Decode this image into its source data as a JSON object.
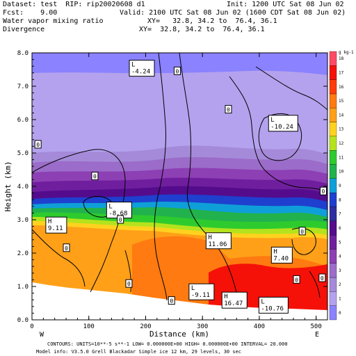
{
  "header": {
    "line1_left": "Dataset: test  RIP: rip20020608 d1",
    "line1_right": "Init: 1200 UTC Sat 08 Jun 02",
    "line2_left": "Fcst:    9.00",
    "line2_right": "Valid: 2100 UTC Sat 08 Jun 02 (1600 CDT Sat 08 Jun 02)",
    "line3_left": "Water vapor mixing ratio",
    "line3_right": "XY=   32.8, 34.2 to  76.4, 36.1",
    "line4_left": "Divergence",
    "line4_right": "XY=  32.8, 34.2 to  76.4, 36.1"
  },
  "footer": {
    "contours": "CONTOURS:  UNITS=10**-5 s**-1  LOW= 0.000000E+00  HIGH= 0.000000E+00  INTERVAL=     20.000",
    "model_info": "Model info: V3.5.0   Grell      Blackadar  Simple ice     12 km,  29 levels,   30 sec"
  },
  "chart_data": {
    "type": "heatmap",
    "xlabel": "Distance (km)",
    "ylabel": "Height (km)",
    "xlim": [
      0,
      520
    ],
    "ylim": [
      0,
      8
    ],
    "x_ticks": [
      0,
      100,
      200,
      300,
      400,
      500
    ],
    "y_ticks": [
      0.0,
      1.0,
      2.0,
      3.0,
      4.0,
      5.0,
      6.0,
      7.0,
      8.0
    ],
    "x_tick_labels": [
      "0",
      "100",
      "200",
      "300",
      "400",
      "500"
    ],
    "y_tick_labels": [
      "0.0",
      "1.0",
      "2.0",
      "3.0",
      "4.0",
      "5.0",
      "6.0",
      "7.0",
      "8.0"
    ],
    "left_end_label": "W",
    "right_end_label": "E",
    "colorbar": {
      "unit_label": "g kg-1",
      "levels": [
        0,
        1,
        2,
        3,
        4,
        5,
        6,
        7,
        8,
        9,
        10,
        11,
        12,
        13,
        14,
        15,
        16,
        17,
        18
      ],
      "colors": [
        "#8a82ff",
        "#b4a2ee",
        "#a58ad9",
        "#9b6cc9",
        "#8d3fb4",
        "#6f1f9e",
        "#540c8c",
        "#2f2f9f",
        "#1f3fcf",
        "#0f9fd8",
        "#21b24d",
        "#2ecb2e",
        "#b4e31d",
        "#ffd21f",
        "#ffa018",
        "#ff7a10",
        "#ff3d0a",
        "#f51108",
        "#ff4a66"
      ]
    },
    "annotations": [
      {
        "text": "L",
        "value": "-4.24",
        "x": 175,
        "y": 7.55
      },
      {
        "text": "L",
        "value": "-10.24",
        "x": 420,
        "y": 5.9
      },
      {
        "text": "L",
        "value": "-8.68",
        "x": 135,
        "y": 3.3
      },
      {
        "text": "H",
        "value": "9.11",
        "x": 28,
        "y": 2.85
      },
      {
        "text": "H",
        "value": "11.06",
        "x": 310,
        "y": 2.38
      },
      {
        "text": "H",
        "value": "7.40",
        "x": 425,
        "y": 1.95
      },
      {
        "text": "L",
        "value": "-9.11",
        "x": 280,
        "y": 0.85
      },
      {
        "text": "H",
        "value": "16.47",
        "x": 338,
        "y": 0.6
      },
      {
        "text": "L",
        "value": "-10.76",
        "x": 403,
        "y": 0.45
      }
    ],
    "contour_labels": [
      {
        "text": "0",
        "x": 255,
        "y": 7.45
      },
      {
        "text": "0",
        "x": 345,
        "y": 6.3
      },
      {
        "text": "0",
        "x": 10,
        "y": 5.25
      },
      {
        "text": "0",
        "x": 110,
        "y": 4.3
      },
      {
        "text": "0",
        "x": 155,
        "y": 3.0
      },
      {
        "text": "0",
        "x": 60,
        "y": 2.15
      },
      {
        "text": "0",
        "x": 170,
        "y": 1.08
      },
      {
        "text": "0",
        "x": 245,
        "y": 0.57
      },
      {
        "text": "0",
        "x": 475,
        "y": 2.65
      },
      {
        "text": "0",
        "x": 512,
        "y": 3.85
      },
      {
        "text": "0",
        "x": 465,
        "y": 1.2
      },
      {
        "text": "0",
        "x": 510,
        "y": 1.25
      }
    ]
  }
}
